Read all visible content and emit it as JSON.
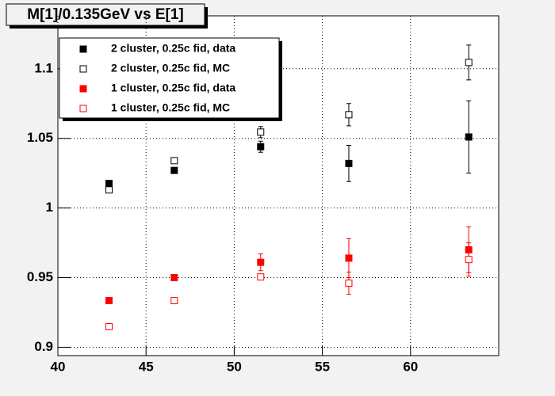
{
  "chart_data": {
    "type": "scatter",
    "title": "M[1]/0.135GeV vs E[1]",
    "x": [
      42.9,
      46.6,
      51.5,
      56.5,
      63.3
    ],
    "series": [
      {
        "name": "2 cluster, 0.25c fid, data",
        "color": "#000000",
        "marker": "filled",
        "values": [
          1.0176,
          1.027,
          1.044,
          1.032,
          1.051
        ],
        "errors": [
          0.002,
          0.002,
          0.004,
          0.013,
          0.026
        ]
      },
      {
        "name": "2 cluster, 0.25c fid, MC",
        "color": "#000000",
        "marker": "open",
        "values": [
          1.013,
          1.034,
          1.0545,
          1.067,
          1.1045
        ],
        "errors": [
          0.001,
          0.002,
          0.004,
          0.008,
          0.0125
        ]
      },
      {
        "name": "1 cluster, 0.25c fid, data",
        "color": "#ff0000",
        "marker": "filled",
        "values": [
          0.9335,
          0.95,
          0.961,
          0.964,
          0.97
        ],
        "errors": [
          0.002,
          0.002,
          0.006,
          0.014,
          0.0165
        ]
      },
      {
        "name": "1 cluster, 0.25c fid, MC",
        "color": "#ff0000",
        "marker": "open",
        "values": [
          0.9148,
          0.9335,
          0.9505,
          0.946,
          0.963
        ],
        "errors": [
          0.0005,
          0.001,
          0.002,
          0.008,
          0.012
        ]
      }
    ],
    "xlim": [
      40,
      65
    ],
    "xticks": [
      40,
      45,
      50,
      55,
      60
    ],
    "ylim": [
      0.894,
      1.138
    ],
    "yticks": [
      0.9,
      0.95,
      1,
      1.05,
      1.1
    ],
    "grid": true
  }
}
